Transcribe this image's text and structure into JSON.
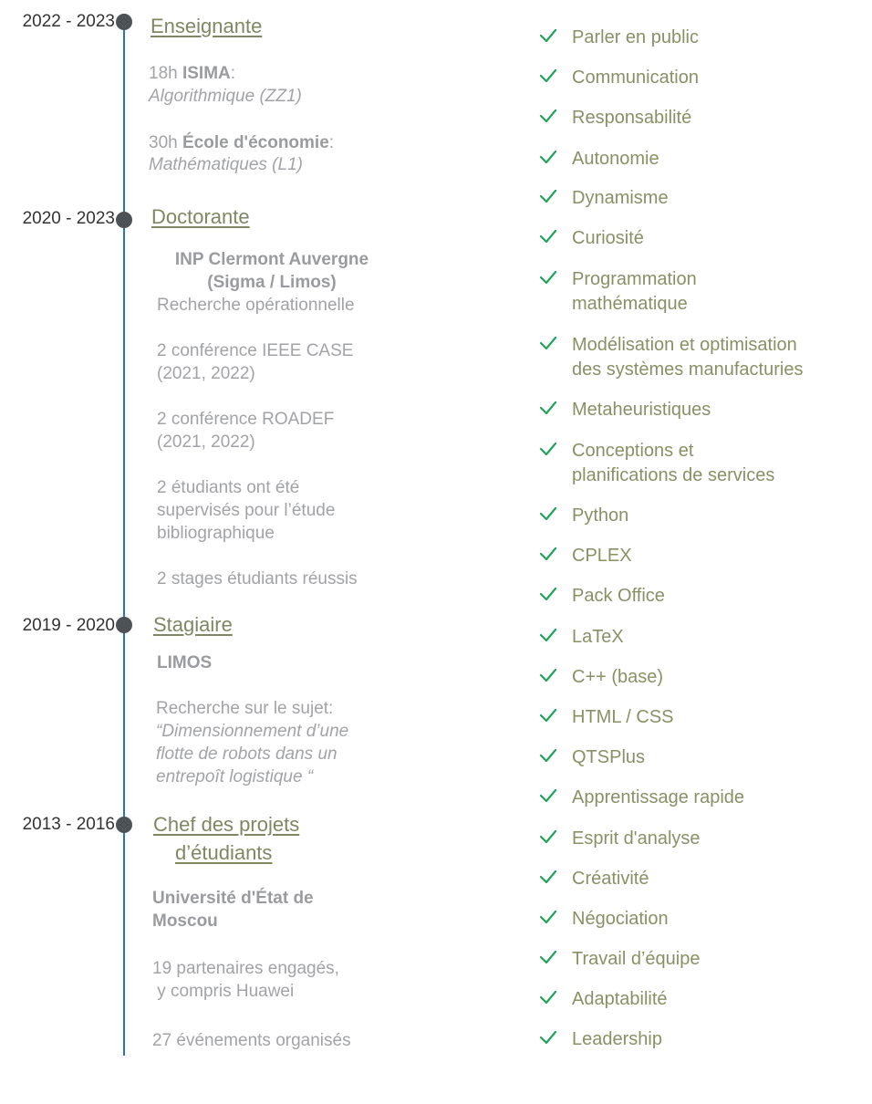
{
  "timeline": [
    {
      "years": "2022 - 2023",
      "role": "Enseignante",
      "details": {
        "isima_hours": "18h ",
        "isima_name": "ISIMA",
        "isima_colon": ":",
        "isima_course": "Algorithmique (ZZ1)",
        "eco_hours": "30h ",
        "eco_name": "École d'économie",
        "eco_colon": ":",
        "eco_course": "Mathématiques (L1)"
      }
    },
    {
      "years": "2020 - 2023",
      "role": "Doctorante",
      "details": {
        "institution_line1": "INP Clermont Auvergne",
        "institution_line2": "(Sigma / Limos)",
        "field": "Recherche opérationnelle",
        "conf1_line1": "2 conférence IEEE CASE",
        "conf1_line2": "(2021, 2022)",
        "conf2_line1": "2 conférence ROADEF",
        "conf2_line2": "(2021, 2022)",
        "students_line1": "2 étudiants ont été",
        "students_line2": "supervisés pour l’étude",
        "students_line3": "bibliographique",
        "internships": "2 stages étudiants réussis"
      }
    },
    {
      "years": "2019 - 2020",
      "role": "Stagiaire",
      "details": {
        "lab": "LIMOS",
        "research_intro": "Recherche sur le sujet:",
        "topic_line1": "“Dimensionnement d’une",
        "topic_line2": "flotte de robots dans un",
        "topic_line3": "entrepoȋt logistique “"
      }
    },
    {
      "years": "2013 - 2016",
      "role_line1": "Chef des projets",
      "role_line2": "d’étudiants",
      "details": {
        "university_line1": "Université d'État de",
        "university_line2": "Moscou",
        "partners_line1": "19 partenaires engagés,",
        "partners_line2": " y compris Huawei",
        "events": "27 événements organisés"
      }
    }
  ],
  "skills": [
    "Parler en public",
    "Communication",
    "Responsabilité",
    "Autonomie",
    "Dynamisme",
    "Curiosité",
    "Programmation\nmathématique",
    "Modélisation et optimisation\ndes systèmes manufacturies",
    "Metaheuristiques",
    "Conceptions et\nplanifications de services",
    "Python",
    "CPLEX",
    "Pack Office",
    "LaTeX",
    "C++ (base)",
    "HTML / CSS",
    "QTSPlus",
    "Apprentissage rapide",
    "Esprit d'analyse",
    "Créativité",
    "Négociation",
    "Travail d’équipe",
    "Adaptabilité",
    "Leadership"
  ],
  "colors": {
    "timeline_line": "#2E75B6",
    "dot": "#4D5257",
    "role": "#7F8762",
    "detail_text": "#A2A3A6",
    "skill_text": "#8A9066",
    "check": "#22A35A"
  },
  "icons": {
    "skill_marker": "check-icon",
    "timeline_marker": "dot"
  }
}
